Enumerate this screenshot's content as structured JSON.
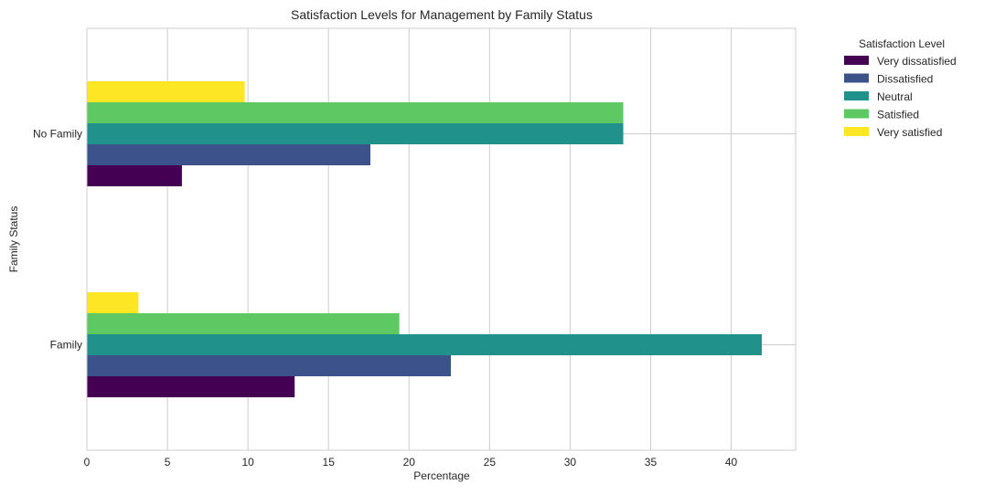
{
  "chart_data": {
    "type": "bar",
    "orientation": "horizontal",
    "title": "Satisfaction Levels for Management by Family Status",
    "xlabel": "Percentage",
    "ylabel": "Family Status",
    "categories": [
      "Family",
      "No Family"
    ],
    "xlim": [
      0,
      44
    ],
    "xticks": [
      0,
      5,
      10,
      15,
      20,
      25,
      30,
      35,
      40
    ],
    "grid": true,
    "legend": {
      "title": "Satisfaction Level",
      "placement": "outside-top-right"
    },
    "series": [
      {
        "name": "Very dissatisfied",
        "color": "#440154",
        "values": [
          12.9,
          5.9
        ]
      },
      {
        "name": "Dissatisfied",
        "color": "#3b528b",
        "values": [
          22.6,
          17.6
        ]
      },
      {
        "name": "Neutral",
        "color": "#21918c",
        "values": [
          41.9,
          33.3
        ]
      },
      {
        "name": "Satisfied",
        "color": "#5ec962",
        "values": [
          19.4,
          33.3
        ]
      },
      {
        "name": "Very satisfied",
        "color": "#fde725",
        "values": [
          3.2,
          9.8
        ]
      }
    ]
  }
}
